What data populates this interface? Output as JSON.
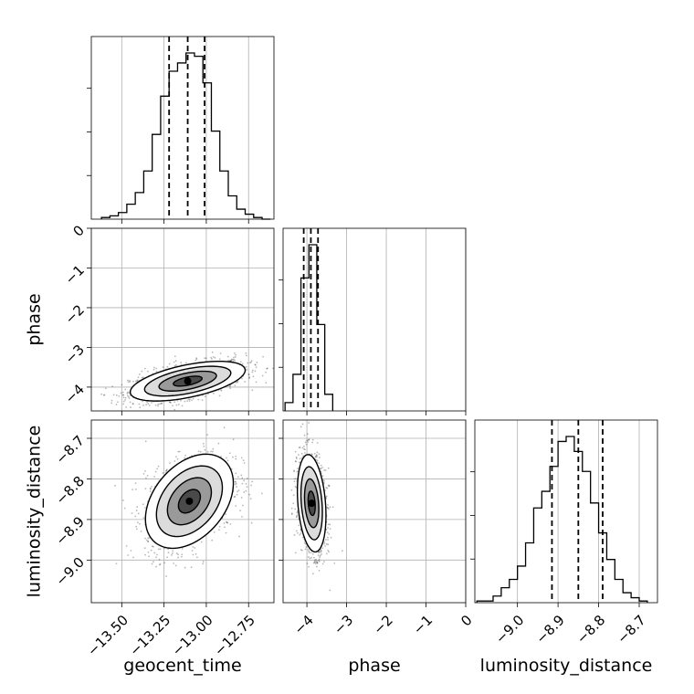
{
  "chart_data": {
    "type": "corner",
    "parameters": [
      "geocent_time",
      "phase",
      "luminosity_distance"
    ],
    "axis_labels": {
      "geocent_time": "geocent_time",
      "phase": "phase",
      "luminosity_distance": "luminosity_distance"
    },
    "ranges": {
      "geocent_time": [
        -13.68,
        -12.6
      ],
      "phase": [
        -4.6,
        0
      ],
      "luminosity_distance": [
        -9.105,
        -8.655
      ]
    },
    "ticks": {
      "geocent_time": [
        {
          "v": -13.5,
          "label": "−13.50"
        },
        {
          "v": -13.25,
          "label": "−13.25"
        },
        {
          "v": -13.0,
          "label": "−13.00"
        },
        {
          "v": -12.75,
          "label": "−12.75"
        }
      ],
      "phase": [
        {
          "v": -4,
          "label": "−4"
        },
        {
          "v": -3,
          "label": "−3"
        },
        {
          "v": -2,
          "label": "−2"
        },
        {
          "v": -1,
          "label": "−1"
        },
        {
          "v": 0,
          "label": "0"
        }
      ],
      "luminosity_distance": [
        {
          "v": -9.0,
          "label": "−9.0"
        },
        {
          "v": -8.9,
          "label": "−8.9"
        },
        {
          "v": -8.8,
          "label": "−8.8"
        },
        {
          "v": -8.7,
          "label": "−8.7"
        }
      ]
    },
    "grid": true,
    "marginals": [
      {
        "parameter": "geocent_time",
        "bin_edges": [
          -13.62,
          -13.57,
          -13.52,
          -13.47,
          -13.42,
          -13.37,
          -13.32,
          -13.27,
          -13.22,
          -13.17,
          -13.12,
          -13.07,
          -13.02,
          -12.97,
          -12.92,
          -12.87,
          -12.82,
          -12.77,
          -12.72,
          -12.67,
          -12.62
        ],
        "counts": [
          1,
          2,
          4,
          9,
          16,
          29,
          51,
          74,
          89,
          94,
          100,
          98,
          82,
          53,
          29,
          14,
          6,
          3,
          1,
          0
        ],
        "quantiles": [
          -13.22,
          -13.11,
          -13.01
        ]
      },
      {
        "parameter": "phase",
        "bin_edges": [
          -4.55,
          -4.35,
          -4.15,
          -3.95,
          -3.75,
          -3.55,
          -3.35
        ],
        "counts": [
          5,
          22,
          80,
          100,
          52,
          10
        ],
        "quantiles": [
          -4.08,
          -3.9,
          -3.72
        ]
      },
      {
        "parameter": "luminosity_distance",
        "bin_edges": [
          -9.1,
          -9.08,
          -9.06,
          -9.04,
          -9.02,
          -9.0,
          -8.98,
          -8.96,
          -8.94,
          -8.92,
          -8.9,
          -8.88,
          -8.86,
          -8.84,
          -8.82,
          -8.8,
          -8.78,
          -8.76,
          -8.74,
          -8.72,
          -8.7,
          -8.68
        ],
        "counts": [
          1,
          1,
          4,
          9,
          14,
          22,
          36,
          57,
          67,
          82,
          97,
          100,
          91,
          79,
          60,
          42,
          26,
          14,
          6,
          3,
          1,
          0
        ],
        "quantiles": [
          -8.915,
          -8.85,
          -8.79
        ]
      }
    ],
    "pairs": [
      {
        "x": "geocent_time",
        "y": "phase",
        "mean": [
          -13.11,
          -3.85
        ],
        "std": [
          0.17,
          0.25
        ],
        "corr": 0.55
      },
      {
        "x": "geocent_time",
        "y": "luminosity_distance",
        "mean": [
          -13.1,
          -8.855
        ],
        "std": [
          0.13,
          0.058
        ],
        "corr": 0.38
      },
      {
        "x": "phase",
        "y": "luminosity_distance",
        "mean": [
          -3.88,
          -8.86
        ],
        "std": [
          0.18,
          0.06
        ],
        "corr": -0.25
      }
    ],
    "contour_levels_sigma": [
      0.5,
      1.0,
      1.5,
      2.0
    ]
  }
}
